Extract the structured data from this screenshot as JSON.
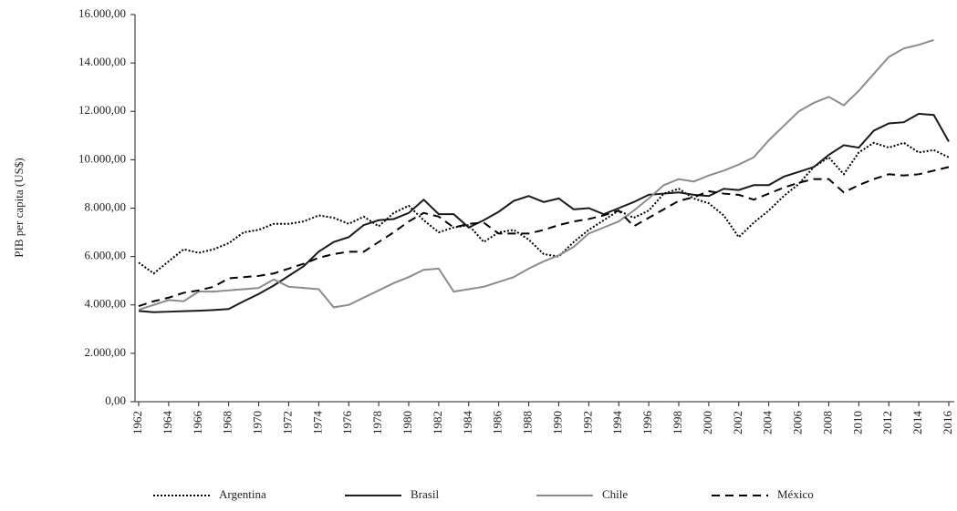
{
  "chart_data": {
    "type": "line",
    "ylabel": "PIB per capita (US$)",
    "x": [
      1962,
      1963,
      1964,
      1965,
      1966,
      1967,
      1968,
      1969,
      1970,
      1971,
      1972,
      1973,
      1974,
      1975,
      1976,
      1977,
      1978,
      1979,
      1980,
      1981,
      1982,
      1983,
      1984,
      1985,
      1986,
      1987,
      1988,
      1989,
      1990,
      1991,
      1992,
      1993,
      1994,
      1995,
      1996,
      1997,
      1998,
      1999,
      2000,
      2001,
      2002,
      2003,
      2004,
      2005,
      2006,
      2007,
      2008,
      2009,
      2010,
      2011,
      2012,
      2013,
      2014,
      2015,
      2016
    ],
    "xlim": [
      1962,
      2016
    ],
    "xticks": [
      1962,
      1964,
      1966,
      1968,
      1970,
      1972,
      1974,
      1976,
      1978,
      1980,
      1982,
      1984,
      1986,
      1988,
      1990,
      1992,
      1994,
      1996,
      1998,
      2000,
      2002,
      2004,
      2006,
      2008,
      2010,
      2012,
      2014,
      2016
    ],
    "ylim": [
      0,
      16000
    ],
    "yticks": [
      {
        "value": 0,
        "label": "0,00"
      },
      {
        "value": 2000,
        "label": "2.000,00"
      },
      {
        "value": 4000,
        "label": "4.000,00"
      },
      {
        "value": 6000,
        "label": "6.000,00"
      },
      {
        "value": 8000,
        "label": "8.000,00"
      },
      {
        "value": 10000,
        "label": "10.000,00"
      },
      {
        "value": 12000,
        "label": "12.000,00"
      },
      {
        "value": 14000,
        "label": "14.000,00"
      },
      {
        "value": 16000,
        "label": "16.000,00"
      }
    ],
    "grid": false,
    "legend": "bottom",
    "series": [
      {
        "name": "Argentina",
        "color": "#000000",
        "dash": "dotted",
        "values": [
          5750,
          5300,
          5800,
          6300,
          6150,
          6300,
          6550,
          7000,
          7100,
          7350,
          7350,
          7450,
          7700,
          7600,
          7350,
          7650,
          7250,
          7800,
          8100,
          7500,
          7000,
          7200,
          7300,
          6600,
          7000,
          7100,
          6700,
          6100,
          6000,
          6600,
          7100,
          7500,
          7900,
          7600,
          7900,
          8600,
          8800,
          8400,
          8200,
          7700,
          6800,
          7400,
          7900,
          8500,
          9000,
          9700,
          10100,
          9400,
          10300,
          10700,
          10500,
          10700,
          10300,
          10400,
          10100
        ]
      },
      {
        "name": "Brasil",
        "color": "#1a1a1a",
        "dash": "solid",
        "values": [
          3750,
          3700,
          3720,
          3740,
          3760,
          3790,
          3830,
          4150,
          4450,
          4800,
          5200,
          5600,
          6200,
          6600,
          6800,
          7300,
          7500,
          7550,
          7800,
          8350,
          7750,
          7750,
          7200,
          7500,
          7850,
          8300,
          8500,
          8250,
          8400,
          7950,
          8000,
          7750,
          8000,
          8250,
          8550,
          8600,
          8650,
          8550,
          8500,
          8800,
          8750,
          8950,
          8950,
          9300,
          9500,
          9700,
          10200,
          10600,
          10500,
          11200,
          11500,
          11550,
          11900,
          11850,
          10750
        ]
      },
      {
        "name": "Chile",
        "color": "#8c8c8c",
        "dash": "solid",
        "values": [
          3800,
          4000,
          4200,
          4150,
          4550,
          4550,
          4600,
          4650,
          4700,
          5050,
          4750,
          4700,
          4650,
          3900,
          4000,
          4300,
          4600,
          4900,
          5150,
          5450,
          5500,
          4550,
          4650,
          4750,
          4950,
          5150,
          5500,
          5800,
          6050,
          6400,
          6950,
          7200,
          7450,
          7900,
          8400,
          8950,
          9200,
          9100,
          9350,
          9550,
          9800,
          10100,
          10800,
          11400,
          12000,
          12350,
          12600,
          12250,
          12850,
          13550,
          14250,
          14600,
          14750,
          14950,
          null
        ]
      },
      {
        "name": "México",
        "color": "#000000",
        "dash": "dashed",
        "values": [
          3950,
          4150,
          4300,
          4500,
          4600,
          4750,
          5100,
          5150,
          5200,
          5300,
          5500,
          5700,
          5950,
          6100,
          6200,
          6200,
          6600,
          7000,
          7450,
          7800,
          7650,
          7200,
          7350,
          7400,
          6950,
          6950,
          6950,
          7100,
          7300,
          7450,
          7550,
          7700,
          7900,
          7250,
          7600,
          7950,
          8300,
          8450,
          8700,
          8600,
          8550,
          8350,
          8600,
          8850,
          9050,
          9200,
          9200,
          8650,
          8950,
          9200,
          9400,
          9350,
          9400,
          9550,
          9700
        ]
      }
    ]
  }
}
